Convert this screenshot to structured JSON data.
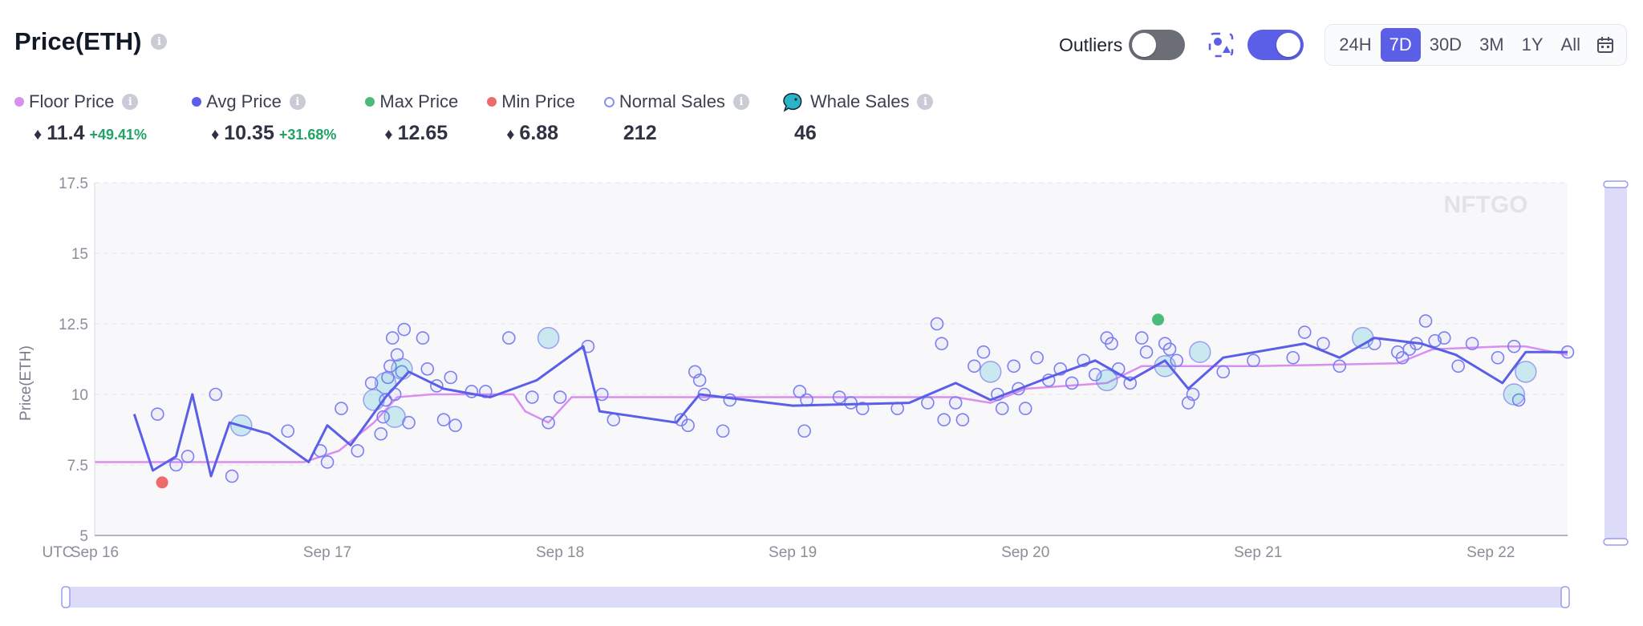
{
  "header": {
    "title": "Price(ETH)"
  },
  "controls": {
    "outliers_label": "Outliers",
    "ranges": [
      "24H",
      "7D",
      "30D",
      "3M",
      "1Y",
      "All"
    ],
    "active_range": "7D"
  },
  "legend": [
    {
      "name": "Floor Price",
      "value": "11.4",
      "change": "+49.41%",
      "color": "#d98ef0",
      "has_info": true,
      "eth": true
    },
    {
      "name": "Avg Price",
      "value": "10.35",
      "change": "+31.68%",
      "color": "#5b5fe8",
      "has_info": true,
      "eth": true
    },
    {
      "name": "Max Price",
      "value": "12.65",
      "change": "",
      "color": "#4cbb7a",
      "has_info": false,
      "eth": true
    },
    {
      "name": "Min Price",
      "value": "6.88",
      "change": "",
      "color": "#ee6b6b",
      "has_info": false,
      "eth": true
    },
    {
      "name": "Normal Sales",
      "value": "212",
      "change": "",
      "color": "#8b8ff0",
      "has_info": true,
      "eth": false
    },
    {
      "name": "Whale Sales",
      "value": "46",
      "change": "",
      "color": "#2bb3c8",
      "has_info": true,
      "eth": false
    }
  ],
  "colors": {
    "accent": "#5b5fe8",
    "floor": "#d98ef0",
    "avg": "#5b5fe8",
    "max": "#4cbb7a",
    "min": "#ee6b6b",
    "sale_stroke": "#7b7ff0"
  },
  "watermark": "NFTGO",
  "chart_data": {
    "type": "line",
    "ylabel": "Price(ETH)",
    "ylim": [
      5,
      17.5
    ],
    "yticks": [
      5,
      7.5,
      10,
      12.5,
      15,
      17.5
    ],
    "xlim": [
      16.0,
      22.33
    ],
    "xticks": [
      {
        "x": 16,
        "label": "Sep 16"
      },
      {
        "x": 17,
        "label": "Sep 17"
      },
      {
        "x": 18,
        "label": "Sep 18"
      },
      {
        "x": 19,
        "label": "Sep 19"
      },
      {
        "x": 20,
        "label": "Sep 20"
      },
      {
        "x": 21,
        "label": "Sep 21"
      },
      {
        "x": 22,
        "label": "Sep 22"
      }
    ],
    "x_prefix": "UTC",
    "grid": true,
    "series": [
      {
        "name": "Floor Price",
        "points": [
          [
            16.0,
            7.6
          ],
          [
            16.9,
            7.6
          ],
          [
            17.05,
            8.0
          ],
          [
            17.2,
            9.0
          ],
          [
            17.3,
            9.9
          ],
          [
            17.45,
            10.0
          ],
          [
            17.8,
            10.0
          ],
          [
            17.85,
            9.4
          ],
          [
            17.95,
            9.0
          ],
          [
            18.05,
            9.9
          ],
          [
            19.0,
            9.9
          ],
          [
            19.7,
            9.9
          ],
          [
            19.85,
            9.7
          ],
          [
            20.0,
            10.2
          ],
          [
            20.35,
            10.4
          ],
          [
            20.5,
            11.0
          ],
          [
            21.0,
            11.0
          ],
          [
            21.6,
            11.1
          ],
          [
            21.75,
            11.6
          ],
          [
            22.05,
            11.7
          ],
          [
            22.15,
            11.7
          ],
          [
            22.33,
            11.4
          ]
        ]
      },
      {
        "name": "Avg Price",
        "points": [
          [
            16.17,
            9.3
          ],
          [
            16.25,
            7.3
          ],
          [
            16.35,
            7.8
          ],
          [
            16.42,
            10.0
          ],
          [
            16.5,
            7.1
          ],
          [
            16.58,
            9.0
          ],
          [
            16.75,
            8.6
          ],
          [
            16.92,
            7.6
          ],
          [
            17.0,
            8.9
          ],
          [
            17.1,
            8.2
          ],
          [
            17.25,
            9.9
          ],
          [
            17.35,
            10.8
          ],
          [
            17.5,
            10.2
          ],
          [
            17.7,
            9.9
          ],
          [
            17.9,
            10.5
          ],
          [
            18.1,
            11.7
          ],
          [
            18.17,
            9.4
          ],
          [
            18.5,
            9.0
          ],
          [
            18.6,
            10.0
          ],
          [
            19.0,
            9.6
          ],
          [
            19.5,
            9.7
          ],
          [
            19.7,
            10.4
          ],
          [
            19.85,
            9.8
          ],
          [
            20.1,
            10.6
          ],
          [
            20.3,
            11.2
          ],
          [
            20.45,
            10.5
          ],
          [
            20.6,
            11.2
          ],
          [
            20.7,
            10.2
          ],
          [
            20.85,
            11.3
          ],
          [
            21.2,
            11.8
          ],
          [
            21.35,
            11.3
          ],
          [
            21.5,
            12.0
          ],
          [
            21.7,
            11.8
          ],
          [
            21.85,
            11.4
          ],
          [
            22.05,
            10.4
          ],
          [
            22.15,
            11.5
          ],
          [
            22.33,
            11.5
          ]
        ]
      },
      {
        "name": "Max Price",
        "points": [
          [
            20.57,
            12.65
          ]
        ]
      },
      {
        "name": "Min Price",
        "points": [
          [
            16.29,
            6.88
          ]
        ]
      },
      {
        "name": "Normal Sales",
        "points": [
          [
            16.27,
            9.3
          ],
          [
            16.35,
            7.5
          ],
          [
            16.4,
            7.8
          ],
          [
            16.52,
            10.0
          ],
          [
            16.59,
            7.1
          ],
          [
            16.83,
            8.7
          ],
          [
            16.97,
            8.0
          ],
          [
            17.0,
            7.6
          ],
          [
            17.06,
            9.5
          ],
          [
            17.13,
            8.0
          ],
          [
            17.19,
            10.4
          ],
          [
            17.23,
            8.6
          ],
          [
            17.24,
            9.2
          ],
          [
            17.25,
            9.8
          ],
          [
            17.26,
            10.6
          ],
          [
            17.27,
            11.0
          ],
          [
            17.28,
            12.0
          ],
          [
            17.29,
            10.0
          ],
          [
            17.3,
            11.4
          ],
          [
            17.32,
            10.8
          ],
          [
            17.33,
            12.3
          ],
          [
            17.35,
            9.0
          ],
          [
            17.41,
            12.0
          ],
          [
            17.43,
            10.9
          ],
          [
            17.47,
            10.3
          ],
          [
            17.5,
            9.1
          ],
          [
            17.53,
            10.6
          ],
          [
            17.55,
            8.9
          ],
          [
            17.62,
            10.1
          ],
          [
            17.68,
            10.1
          ],
          [
            17.78,
            12.0
          ],
          [
            17.88,
            9.9
          ],
          [
            17.95,
            9.0
          ],
          [
            18.0,
            9.9
          ],
          [
            18.12,
            11.7
          ],
          [
            18.18,
            10.0
          ],
          [
            18.23,
            9.1
          ],
          [
            18.52,
            9.1
          ],
          [
            18.55,
            8.9
          ],
          [
            18.58,
            10.8
          ],
          [
            18.6,
            10.5
          ],
          [
            18.62,
            10.0
          ],
          [
            18.7,
            8.7
          ],
          [
            18.73,
            9.8
          ],
          [
            19.03,
            10.1
          ],
          [
            19.05,
            8.7
          ],
          [
            19.06,
            9.8
          ],
          [
            19.2,
            9.9
          ],
          [
            19.25,
            9.7
          ],
          [
            19.3,
            9.5
          ],
          [
            19.45,
            9.5
          ],
          [
            19.58,
            9.7
          ],
          [
            19.62,
            12.5
          ],
          [
            19.64,
            11.8
          ],
          [
            19.65,
            9.1
          ],
          [
            19.7,
            9.7
          ],
          [
            19.73,
            9.1
          ],
          [
            19.78,
            11.0
          ],
          [
            19.82,
            11.5
          ],
          [
            19.88,
            10.0
          ],
          [
            19.9,
            9.5
          ],
          [
            19.95,
            11.0
          ],
          [
            19.97,
            10.2
          ],
          [
            20.0,
            9.5
          ],
          [
            20.05,
            11.3
          ],
          [
            20.1,
            10.5
          ],
          [
            20.15,
            10.9
          ],
          [
            20.2,
            10.4
          ],
          [
            20.25,
            11.2
          ],
          [
            20.3,
            10.7
          ],
          [
            20.35,
            12.0
          ],
          [
            20.37,
            11.8
          ],
          [
            20.4,
            10.9
          ],
          [
            20.45,
            10.4
          ],
          [
            20.5,
            12.0
          ],
          [
            20.52,
            11.5
          ],
          [
            20.6,
            11.8
          ],
          [
            20.62,
            11.6
          ],
          [
            20.65,
            11.2
          ],
          [
            20.7,
            9.7
          ],
          [
            20.72,
            10.0
          ],
          [
            20.85,
            10.8
          ],
          [
            20.98,
            11.2
          ],
          [
            21.15,
            11.3
          ],
          [
            21.2,
            12.2
          ],
          [
            21.28,
            11.8
          ],
          [
            21.35,
            11.0
          ],
          [
            21.5,
            11.8
          ],
          [
            21.6,
            11.5
          ],
          [
            21.62,
            11.3
          ],
          [
            21.65,
            11.6
          ],
          [
            21.68,
            11.8
          ],
          [
            21.72,
            12.6
          ],
          [
            21.76,
            11.9
          ],
          [
            21.8,
            12.0
          ],
          [
            21.86,
            11.0
          ],
          [
            21.92,
            11.8
          ],
          [
            22.03,
            11.3
          ],
          [
            22.1,
            11.7
          ],
          [
            22.12,
            9.8
          ],
          [
            22.33,
            11.5
          ]
        ]
      },
      {
        "name": "Whale Sales",
        "points": [
          [
            16.63,
            8.9
          ],
          [
            17.2,
            9.8
          ],
          [
            17.25,
            10.4
          ],
          [
            17.29,
            9.2
          ],
          [
            17.32,
            10.9
          ],
          [
            17.95,
            12.0
          ],
          [
            19.85,
            10.8
          ],
          [
            20.35,
            10.5
          ],
          [
            20.6,
            11.0
          ],
          [
            20.75,
            11.5
          ],
          [
            21.45,
            12.0
          ],
          [
            22.1,
            10.0
          ],
          [
            22.15,
            10.8
          ]
        ]
      }
    ]
  }
}
